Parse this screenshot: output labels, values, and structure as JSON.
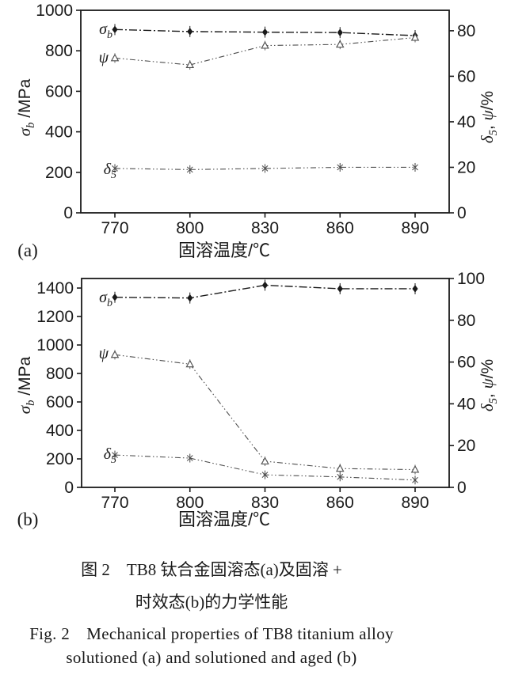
{
  "caption": {
    "cn_line1": "图 2　TB8 钛合金固溶态(a)及固溶 +",
    "cn_line2": "时效态(b)的力学性能",
    "en_line1": "Fig. 2　Mechanical properties of TB8 titanium alloy",
    "en_line2": "solutioned (a) and solutioned and aged (b)"
  },
  "colors": {
    "ink": "#1a1a1a",
    "secondary": "#4f4f4f",
    "background": "#ffffff"
  },
  "chart_data": [
    {
      "id": "a",
      "type": "line",
      "panel_label": "(a)",
      "xlabel": "固溶温度/℃",
      "x": [
        770,
        800,
        830,
        860,
        890
      ],
      "left_axis": {
        "label": "σb /MPa",
        "label_segments": [
          {
            "t": "σ",
            "it": true
          },
          {
            "t": "b",
            "it": true,
            "sub": true
          },
          {
            "t": " /MPa"
          }
        ],
        "ticks": [
          0,
          200,
          400,
          600,
          800,
          1000
        ],
        "top_value": 1000
      },
      "right_axis": {
        "label": "δ5, ψ/%",
        "label_segments": [
          {
            "t": "δ",
            "it": true
          },
          {
            "t": "5",
            "it": true,
            "sub": true
          },
          {
            "t": ", "
          },
          {
            "t": "ψ",
            "it": true
          },
          {
            "t": "/%"
          }
        ],
        "ticks": [
          0,
          20,
          40,
          60,
          80
        ],
        "top_value": 89
      },
      "series": [
        {
          "name": "sigma-b",
          "axis": "left",
          "marker": "diamond-filled",
          "label": "σb",
          "label_segments": [
            {
              "t": "σ",
              "it": true
            },
            {
              "t": "b",
              "it": true,
              "sub": true
            }
          ],
          "values": [
            905,
            895,
            892,
            890,
            875
          ]
        },
        {
          "name": "psi",
          "axis": "right",
          "marker": "triangle-open",
          "label": "ψ",
          "label_segments": [
            {
              "t": "ψ",
              "it": true
            }
          ],
          "values": [
            68,
            65,
            73.5,
            74,
            77
          ]
        },
        {
          "name": "delta-5",
          "axis": "right",
          "marker": "asterisk",
          "label": "δ5",
          "label_segments": [
            {
              "t": "δ",
              "it": true
            },
            {
              "t": "5",
              "it": true,
              "sub": true
            }
          ],
          "values": [
            19.5,
            19,
            19.5,
            20,
            20
          ]
        }
      ]
    },
    {
      "id": "b",
      "type": "line",
      "panel_label": "(b)",
      "xlabel": "固溶温度/℃",
      "x": [
        770,
        800,
        830,
        860,
        890
      ],
      "left_axis": {
        "label": "σb /MPa",
        "label_segments": [
          {
            "t": "σ",
            "it": true
          },
          {
            "t": "b",
            "it": true,
            "sub": true
          },
          {
            "t": " /MPa"
          }
        ],
        "ticks": [
          0,
          200,
          400,
          600,
          800,
          1000,
          1200,
          1400
        ],
        "top_value": 1467
      },
      "right_axis": {
        "label": "δ5, ψ/%",
        "label_segments": [
          {
            "t": "δ",
            "it": true
          },
          {
            "t": "5",
            "it": true,
            "sub": true
          },
          {
            "t": ", "
          },
          {
            "t": "ψ",
            "it": true
          },
          {
            "t": "/%"
          }
        ],
        "ticks": [
          0,
          20,
          40,
          60,
          80,
          100
        ],
        "top_value": 100
      },
      "series": [
        {
          "name": "sigma-b",
          "axis": "left",
          "marker": "diamond-filled",
          "label": "σb",
          "label_segments": [
            {
              "t": "σ",
              "it": true
            },
            {
              "t": "b",
              "it": true,
              "sub": true
            }
          ],
          "values": [
            1335,
            1330,
            1420,
            1395,
            1395
          ]
        },
        {
          "name": "psi",
          "axis": "right",
          "marker": "triangle-open",
          "label": "ψ",
          "label_segments": [
            {
              "t": "ψ",
              "it": true
            }
          ],
          "values": [
            63.5,
            59,
            12.5,
            9,
            8.5
          ]
        },
        {
          "name": "delta-5",
          "axis": "right",
          "marker": "asterisk",
          "label": "δ5",
          "label_segments": [
            {
              "t": "δ",
              "it": true
            },
            {
              "t": "5",
              "it": true,
              "sub": true
            }
          ],
          "values": [
            15.5,
            14,
            6,
            5,
            3.5
          ]
        }
      ]
    }
  ]
}
